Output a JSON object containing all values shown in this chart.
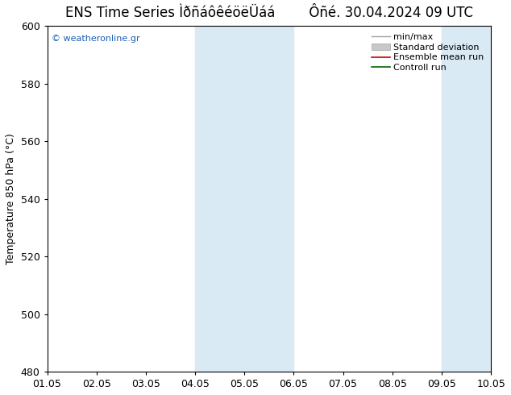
{
  "title": "ENS Time Series ÌðñáôêéöëÜáá",
  "title2": "Ôñé. 30.04.2024 09 UTC",
  "ylabel": "Temperature 850 hPa (°C)",
  "ylim": [
    480,
    600
  ],
  "yticks": [
    480,
    500,
    520,
    540,
    560,
    580,
    600
  ],
  "xtick_labels": [
    "01.05",
    "02.05",
    "03.05",
    "04.05",
    "05.05",
    "06.05",
    "07.05",
    "08.05",
    "09.05",
    "10.05"
  ],
  "xlim": [
    0,
    9
  ],
  "watermark": "© weatheronline.gr",
  "band_color": "#daeaf5",
  "band_ranges": [
    [
      3,
      5
    ],
    [
      8,
      9
    ]
  ],
  "legend_labels": [
    "min/max",
    "Standard deviation",
    "Ensemble mean run",
    "Controll run"
  ],
  "background_color": "#ffffff",
  "title_fontsize": 12,
  "tick_fontsize": 9,
  "ylabel_fontsize": 9,
  "watermark_color": "#1a5fb4",
  "legend_fontsize": 8
}
